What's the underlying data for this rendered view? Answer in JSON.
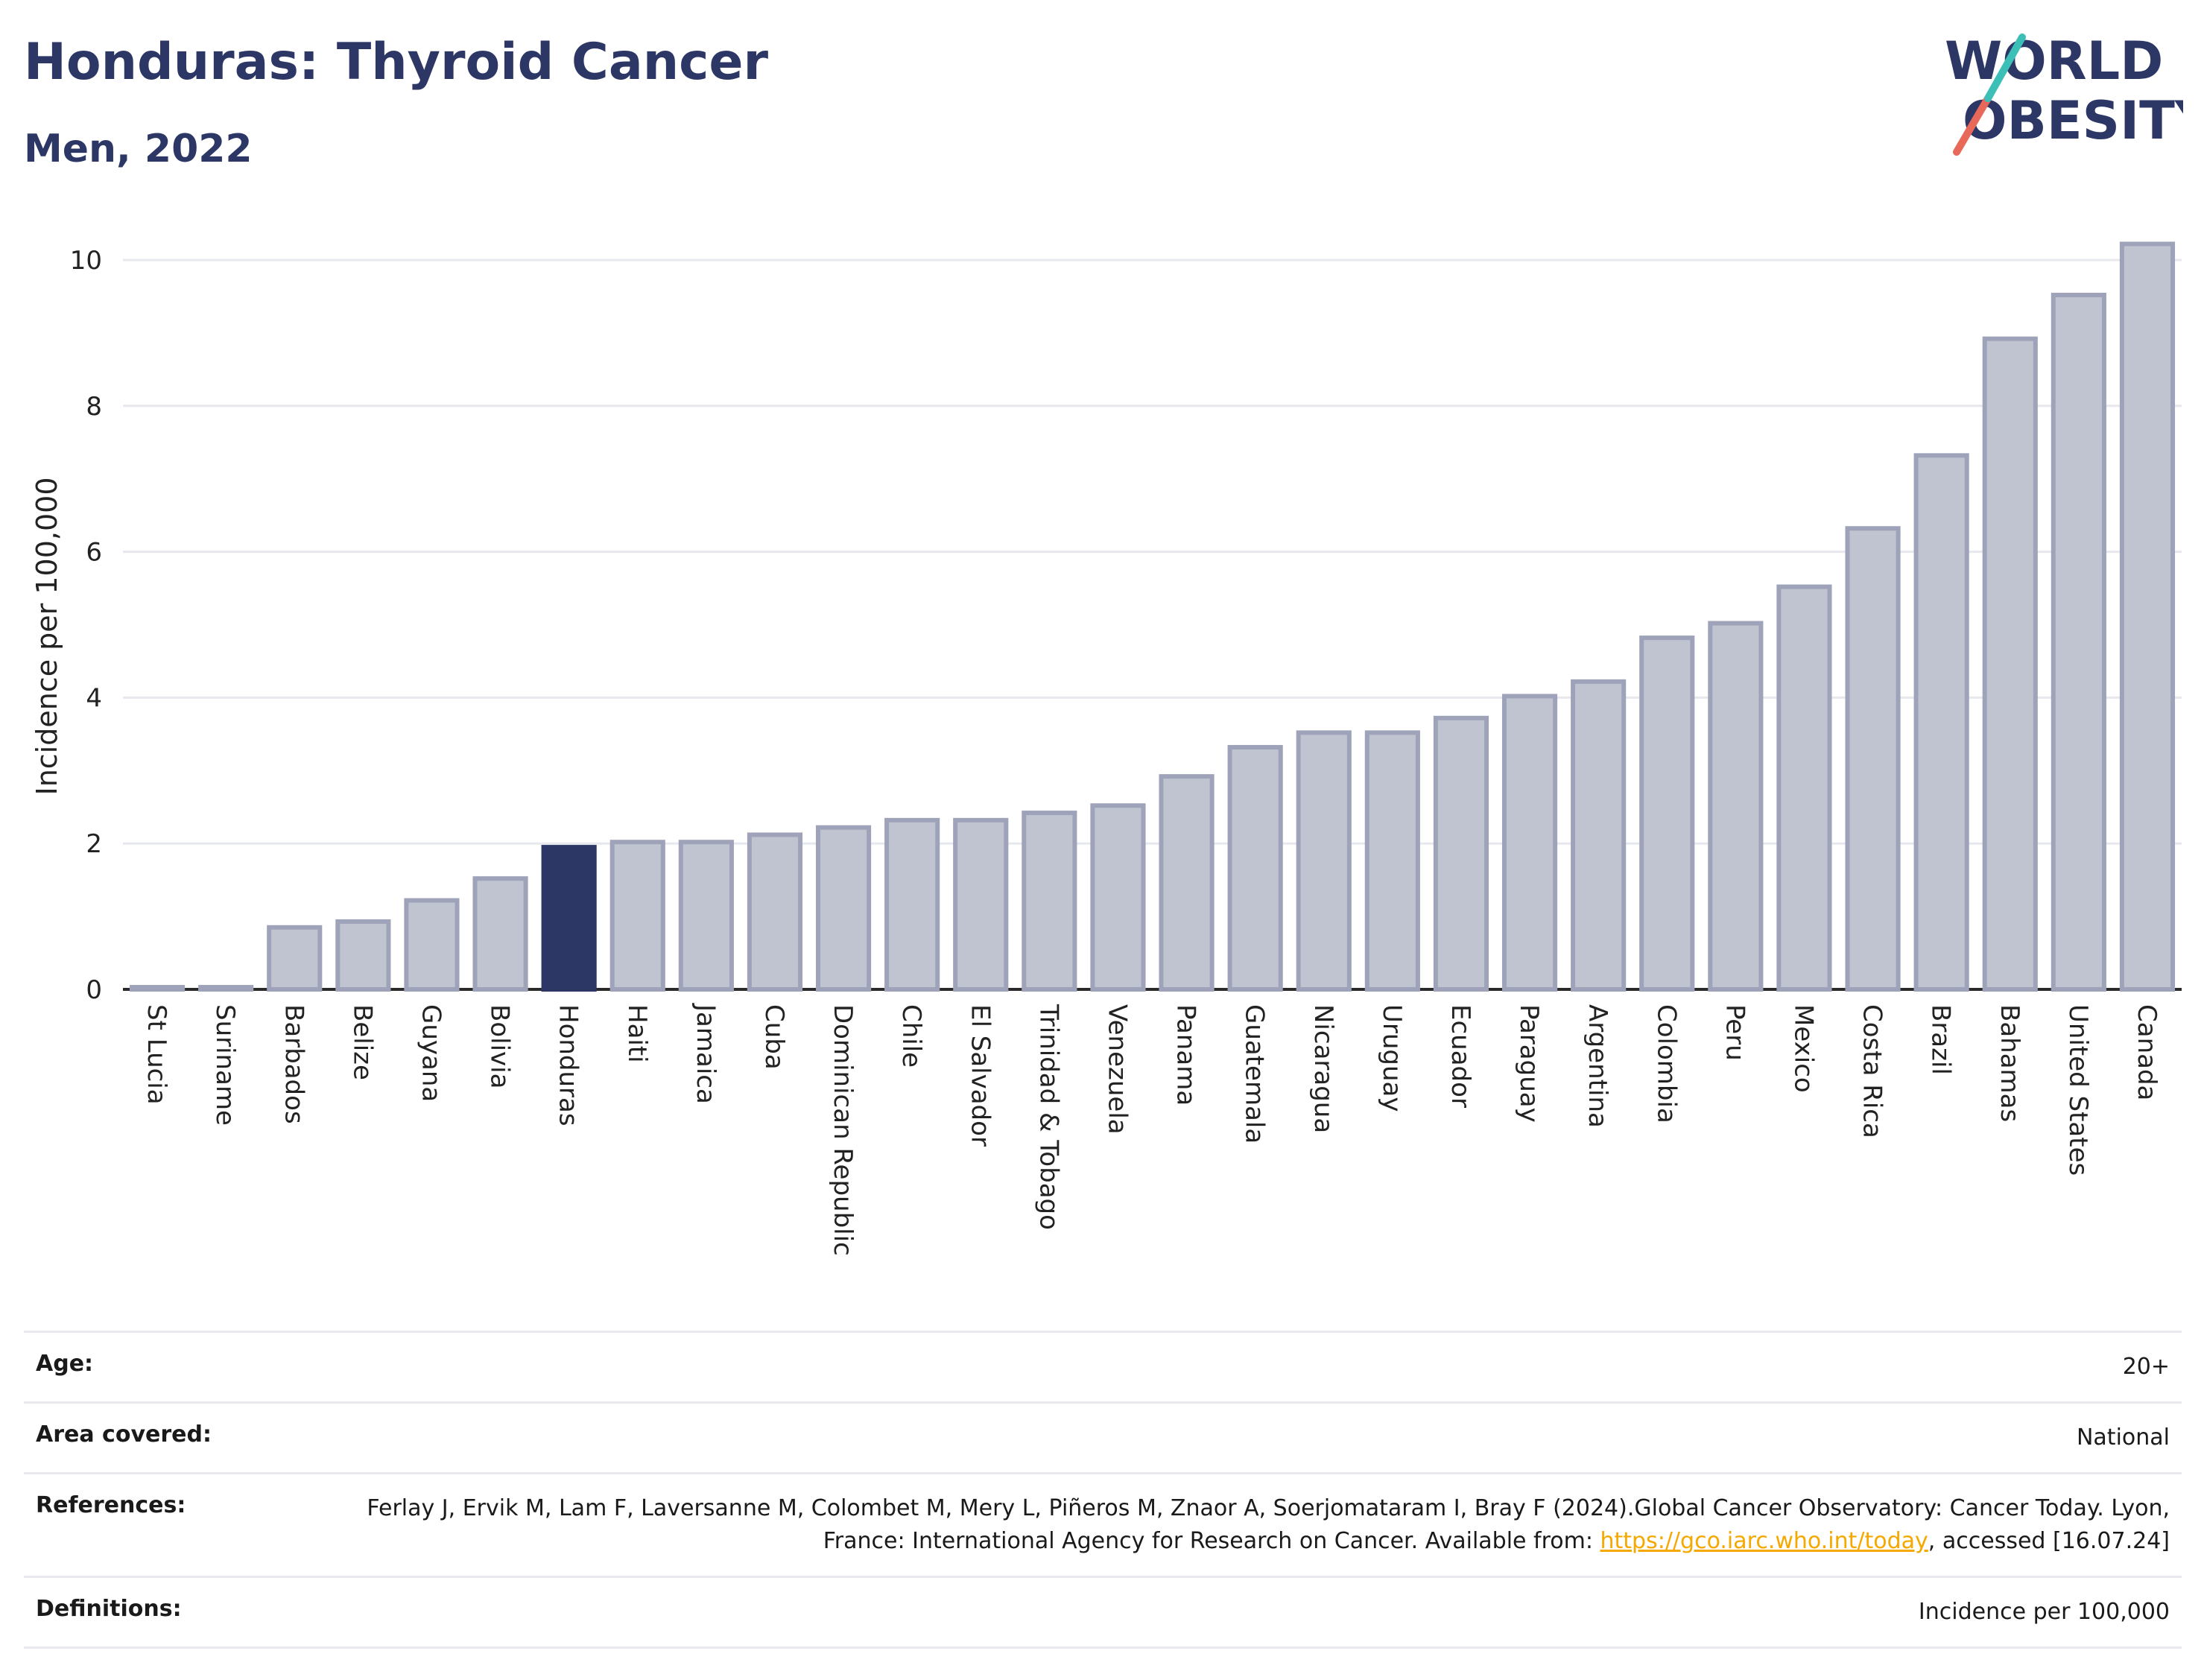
{
  "header": {
    "title": "Honduras: Thyroid Cancer",
    "subtitle": "Men, 2022",
    "logo_line1": "WORLD",
    "logo_line2": "OBESITY"
  },
  "colors": {
    "accent": "#2d3766",
    "bar_fill": "#c0c4d1",
    "bar_stroke": "#9ea3b9",
    "link": "#f5a800"
  },
  "chart_data": {
    "type": "bar",
    "title": "Honduras: Thyroid Cancer",
    "subtitle": "Men, 2022",
    "xlabel": "",
    "ylabel": "Incidence per 100,000",
    "ylim": [
      0,
      10.5
    ],
    "yticks": [
      0,
      2,
      4,
      6,
      8,
      10
    ],
    "grid": true,
    "highlight": "Honduras",
    "categories": [
      "St Lucia",
      "Suriname",
      "Barbados",
      "Belize",
      "Guyana",
      "Bolivia",
      "Honduras",
      "Haiti",
      "Jamaica",
      "Cuba",
      "Dominican Republic",
      "Chile",
      "El Salvador",
      "Trinidad & Tobago",
      "Venezuela",
      "Panama",
      "Guatemala",
      "Nicaragua",
      "Uruguay",
      "Ecuador",
      "Paraguay",
      "Argentina",
      "Colombia",
      "Peru",
      "Mexico",
      "Costa Rica",
      "Brazil",
      "Bahamas",
      "United States",
      "Canada"
    ],
    "values": [
      0.03,
      0.03,
      0.85,
      0.93,
      1.22,
      1.52,
      1.95,
      2.02,
      2.02,
      2.12,
      2.22,
      2.32,
      2.32,
      2.42,
      2.52,
      2.92,
      3.32,
      3.52,
      3.52,
      3.72,
      4.02,
      4.22,
      4.82,
      5.02,
      5.52,
      6.32,
      7.32,
      8.92,
      9.52,
      10.22
    ]
  },
  "info": {
    "age_label": "Age:",
    "age_value": "20+",
    "area_label": "Area covered:",
    "area_value": "National",
    "references_label": "References:",
    "references_text1": "Ferlay J, Ervik M, Lam F, Laversanne M, Colombet M, Mery L, Piñeros M, Znaor A, Soerjomataram I, Bray F (2024).Global Cancer Observatory: Cancer Today. Lyon, France: International Agency for Research on Cancer. Available from: ",
    "references_link": "https://gco.iarc.who.int/today",
    "references_text2": ", accessed [16.07.24]",
    "definitions_label": "Definitions:",
    "definitions_value": "Incidence per 100,000"
  }
}
